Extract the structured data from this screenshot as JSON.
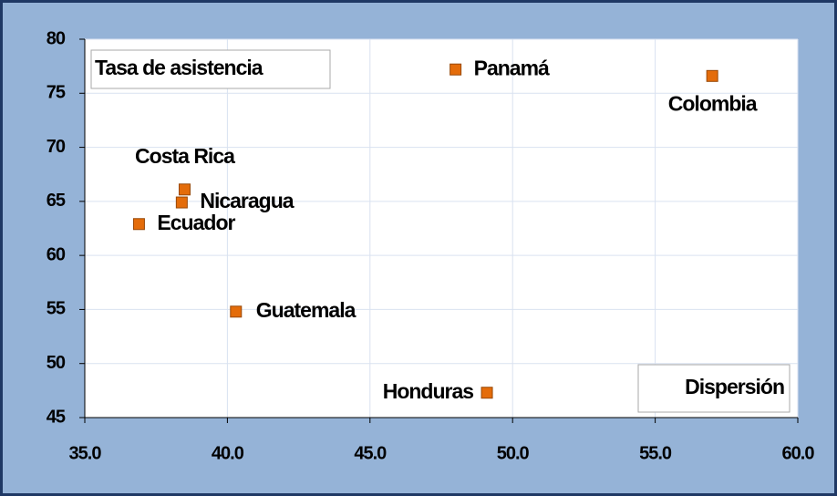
{
  "chart_data": {
    "type": "scatter",
    "y_label": "Tasa de asistencia",
    "x_label": "Dispersión",
    "labels": [
      "Panamá",
      "Colombia",
      "Costa Rica",
      "Nicaragua",
      "Ecuador",
      "Guatemala",
      "Honduras"
    ],
    "x": [
      48.0,
      57.0,
      38.5,
      38.4,
      36.9,
      40.3,
      49.1
    ],
    "series": [
      {
        "color": "#e46c0a",
        "values": [
          77.2,
          76.6,
          66.1,
          64.9,
          62.9,
          54.8,
          47.3
        ]
      }
    ],
    "xlim": [
      35,
      60
    ],
    "xticks": [
      {
        "value": 35,
        "label": "35.0"
      },
      {
        "value": 40,
        "label": "40.0"
      },
      {
        "value": 45,
        "label": "45.0"
      },
      {
        "value": 50,
        "label": "50.0"
      },
      {
        "value": 55,
        "label": "55.0"
      },
      {
        "value": 60,
        "label": "60.0"
      }
    ],
    "ylim": [
      45,
      80
    ],
    "yticks": [
      45,
      50,
      55,
      60,
      65,
      70,
      75,
      80
    ],
    "grid": true
  }
}
